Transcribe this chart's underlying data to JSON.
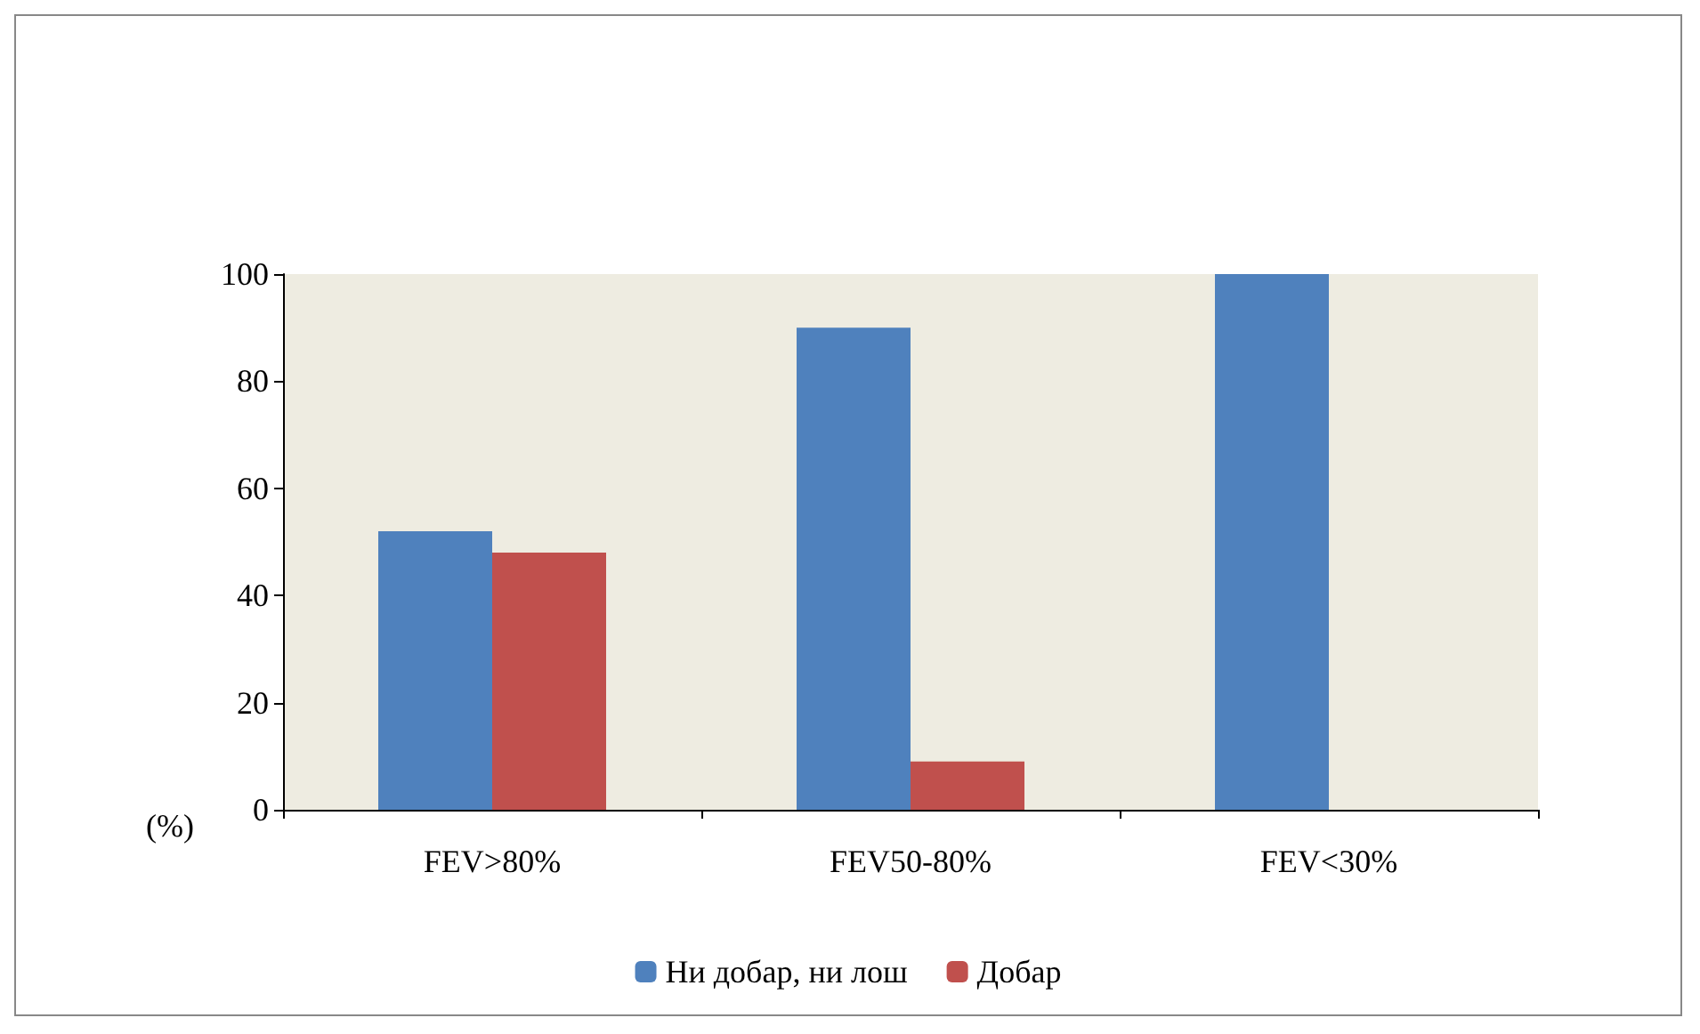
{
  "chart_data": {
    "type": "bar",
    "ylabel": "(%)",
    "categories": [
      "FEV>80%",
      "FEV50-80%",
      "FEV<30%"
    ],
    "series": [
      {
        "name": "Ни добар, ни лош",
        "color": "#4f81bd",
        "values": [
          52,
          90,
          100
        ]
      },
      {
        "name": "Добар",
        "color": "#c0504d",
        "values": [
          48,
          9,
          0
        ]
      }
    ],
    "ylim": [
      0,
      100
    ],
    "yticks": [
      0,
      20,
      40,
      60,
      80,
      100
    ],
    "grid": false,
    "legend": "bottom"
  }
}
